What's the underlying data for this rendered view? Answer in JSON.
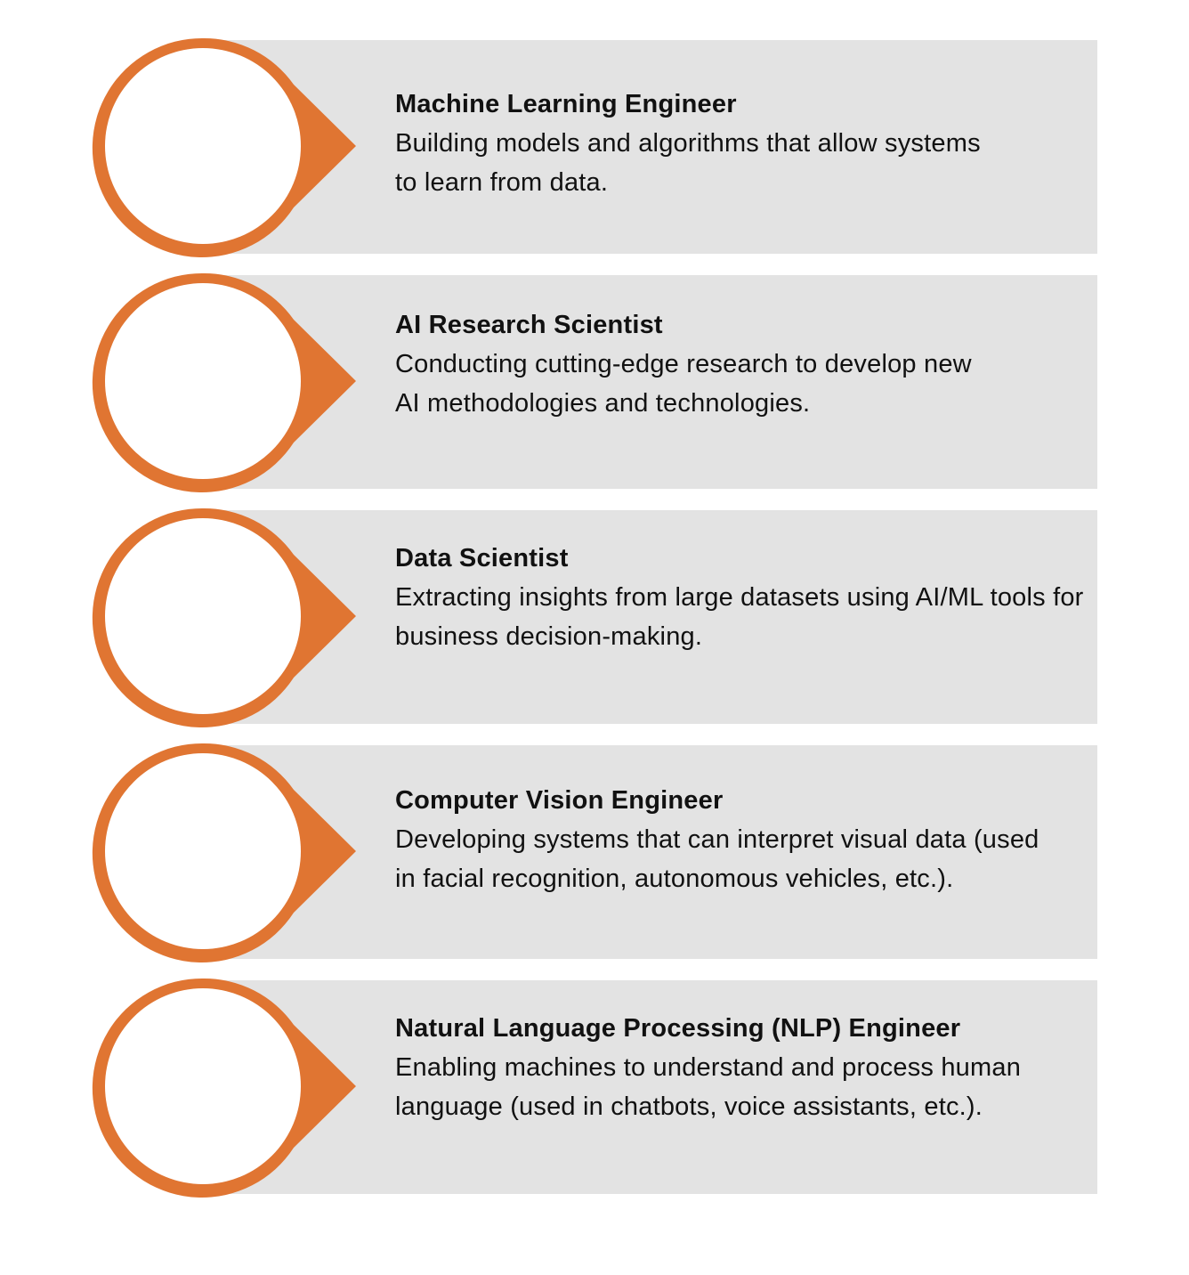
{
  "colors": {
    "accent": "#e07532",
    "panel": "#e3e3e3",
    "text": "#111111",
    "inner_circle": "#ffffff"
  },
  "roles": [
    {
      "title": "Machine Learning Engineer",
      "description": "Building models and algorithms that allow systems to learn from data."
    },
    {
      "title": "AI Research Scientist",
      "description": "Conducting cutting-edge research to develop new AI methodologies and technologies."
    },
    {
      "title": "Data Scientist",
      "description": "Extracting insights from large datasets using AI/ML tools for business decision-making."
    },
    {
      "title": "Computer Vision Engineer",
      "description": "Developing systems that can interpret visual data (used in facial recognition, autonomous vehicles, etc.)."
    },
    {
      "title": "Natural Language Processing (NLP) Engineer",
      "description": "Enabling machines to understand and process human language (used in chatbots, voice assistants, etc.)."
    }
  ]
}
